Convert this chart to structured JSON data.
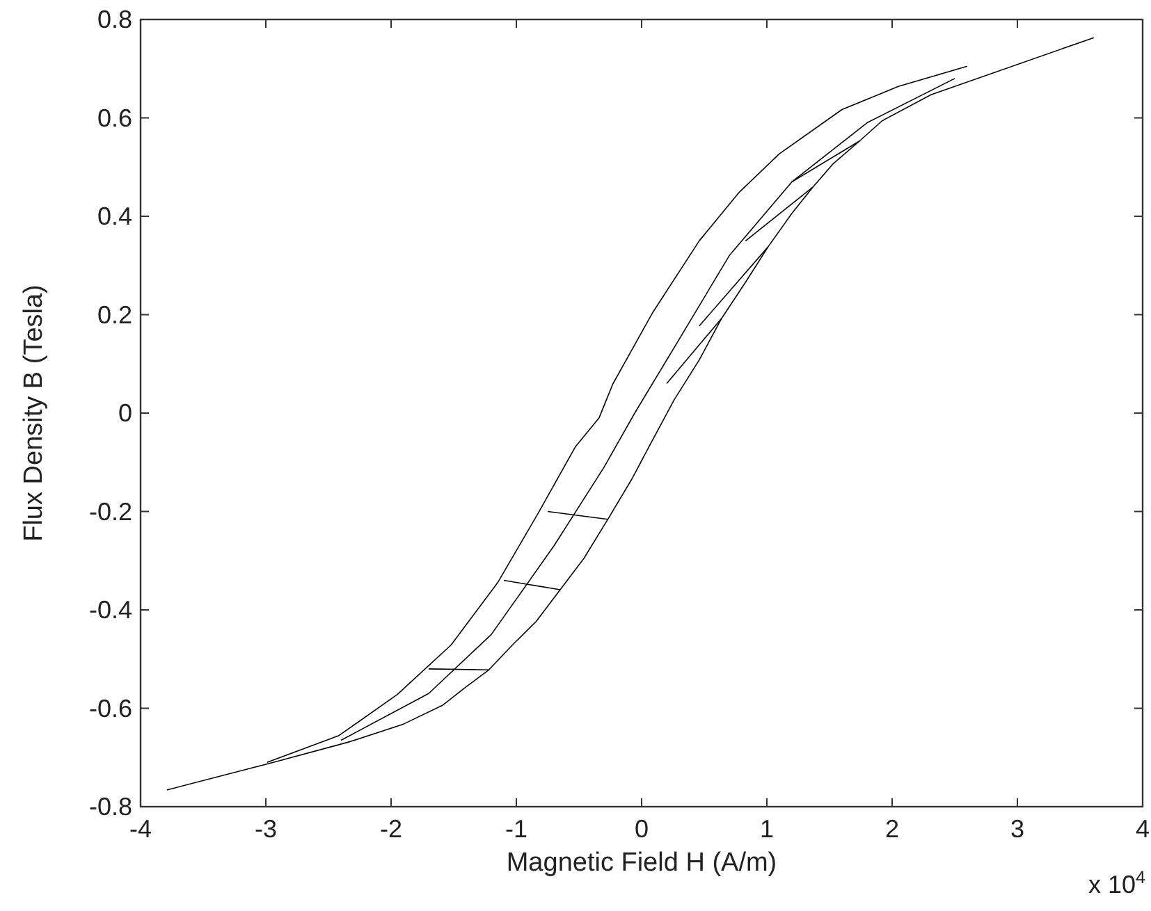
{
  "chart_data": {
    "type": "line",
    "xlabel": "Magnetic Field H (A/m)",
    "ylabel": "Flux Density B (Tesla)",
    "annotations": [
      "x 10$^{4}$"
    ],
    "xlim": [
      -4,
      4
    ],
    "xticks": [
      -4,
      -3,
      -2,
      -1,
      0,
      1,
      2,
      3,
      4
    ],
    "ylim": [
      -0.8,
      0.8
    ],
    "yticks": [
      -0.8,
      -0.6,
      -0.4,
      -0.2,
      0,
      0.2,
      0.4,
      0.6,
      0.8
    ],
    "grid": false,
    "marker": "none",
    "line_style": "solid",
    "series": [
      {
        "color": "#000000",
        "x": [
          -3.79,
          -2.94,
          -2.33,
          -1.9,
          -1.59,
          -1.41,
          -1.22,
          -1.03,
          -0.84,
          -0.65,
          -0.46,
          -0.27,
          -0.08,
          0.07,
          0.26,
          0.46,
          0.64,
          0.83,
          1.01,
          1.2,
          1.37,
          1.53,
          1.74,
          1.92,
          2.31,
          3.61
        ],
        "values": [
          -0.766,
          -0.71,
          -0.668,
          -0.632,
          -0.594,
          -0.558,
          -0.522,
          -0.471,
          -0.423,
          -0.359,
          -0.295,
          -0.216,
          -0.135,
          -0.063,
          0.027,
          0.108,
          0.193,
          0.266,
          0.338,
          0.406,
          0.46,
          0.507,
          0.553,
          0.594,
          0.647,
          0.763
        ]
      },
      {
        "color": "#000000",
        "x": [
          2.6,
          2.05,
          1.6,
          1.1,
          0.78,
          0.46,
          0.09,
          -0.23,
          -0.34,
          -0.53,
          -0.82,
          -1.15,
          -1.52,
          -1.95,
          -2.42,
          -2.99
        ],
        "values": [
          0.705,
          0.664,
          0.617,
          0.527,
          0.449,
          0.35,
          0.205,
          0.059,
          -0.01,
          -0.069,
          -0.201,
          -0.345,
          -0.471,
          -0.572,
          -0.656,
          -0.71
        ]
      },
      {
        "color": "#000000",
        "x": [
          -2.4,
          -1.7,
          -1.2,
          -0.7,
          -0.3,
          -0.055,
          0.3,
          0.7,
          1.2,
          1.8,
          2.5
        ],
        "values": [
          -0.665,
          -0.57,
          -0.45,
          -0.27,
          -0.11,
          0,
          0.15,
          0.32,
          0.47,
          0.59,
          0.68
        ]
      },
      {
        "color": "#000000",
        "x": [
          1.2,
          1.74
        ],
        "values": [
          0.47,
          0.553
        ]
      },
      {
        "color": "#000000",
        "x": [
          0.83,
          1.37
        ],
        "values": [
          0.35,
          0.46
        ]
      },
      {
        "color": "#000000",
        "x": [
          0.46,
          1.01
        ],
        "values": [
          0.177,
          0.338
        ]
      },
      {
        "color": "#000000",
        "x": [
          0.2,
          0.64
        ],
        "values": [
          0.06,
          0.193
        ]
      },
      {
        "color": "#000000",
        "x": [
          -0.75,
          -0.27
        ],
        "values": [
          -0.2,
          -0.216
        ]
      },
      {
        "color": "#000000",
        "x": [
          -1.1,
          -0.65
        ],
        "values": [
          -0.34,
          -0.359
        ]
      },
      {
        "color": "#000000",
        "x": [
          -1.7,
          -1.22
        ],
        "values": [
          -0.52,
          -0.522
        ]
      }
    ]
  }
}
